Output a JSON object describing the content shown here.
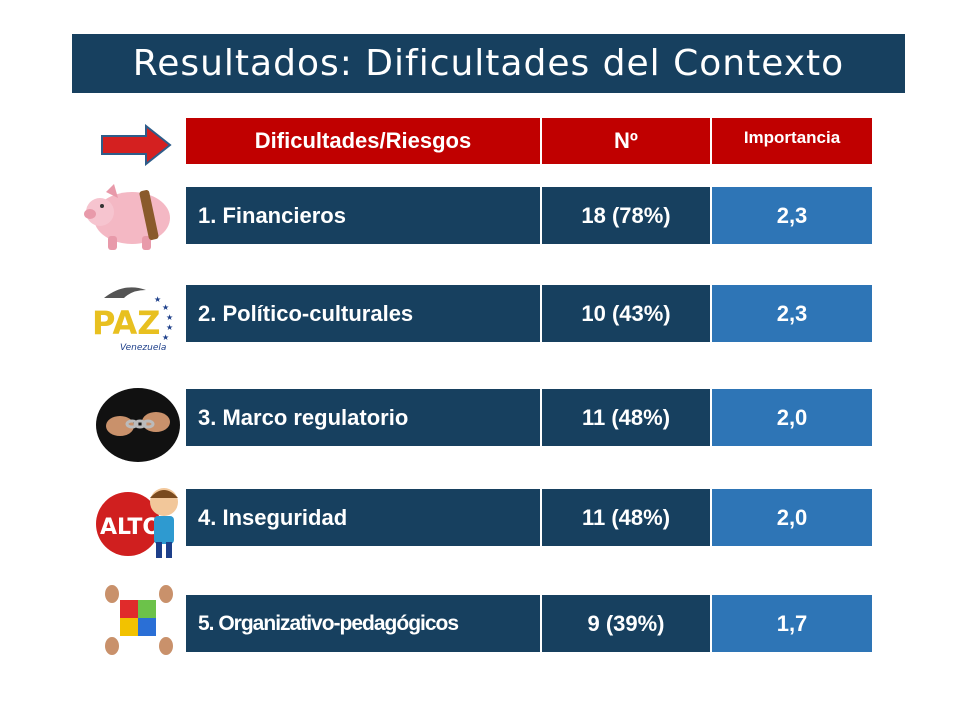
{
  "title": "Resultados: Dificultades del Contexto",
  "table": {
    "headers": [
      "Dificultades/Riesgos",
      "Nº",
      "Importancia"
    ],
    "rows": [
      {
        "label": "1. Financieros",
        "count": "18 (78%)",
        "importance": "2,3",
        "icon": "piggy-bank-icon"
      },
      {
        "label": "2. Político-culturales",
        "count": "10 (43%)",
        "importance": "2,3",
        "icon": "paz-venezuela-logo-icon"
      },
      {
        "label": "3. Marco regulatorio",
        "count": "11 (48%)",
        "importance": "2,0",
        "icon": "chained-hands-icon"
      },
      {
        "label": "4. Inseguridad",
        "count": "11 (48%)",
        "importance": "2,0",
        "icon": "alto-stop-sign-icon"
      },
      {
        "label": "5. Organizativo-pedagógicos",
        "count": "9 (39%)",
        "importance": "1,7",
        "icon": "puzzle-hands-icon"
      }
    ]
  },
  "icon_texts": {
    "paz": "PAZ",
    "paz_sub": "Venezuela",
    "alto": "ALTO"
  },
  "colors": {
    "header_red": "#c00000",
    "dark_blue": "#17405f",
    "mid_blue": "#2e75b6"
  }
}
